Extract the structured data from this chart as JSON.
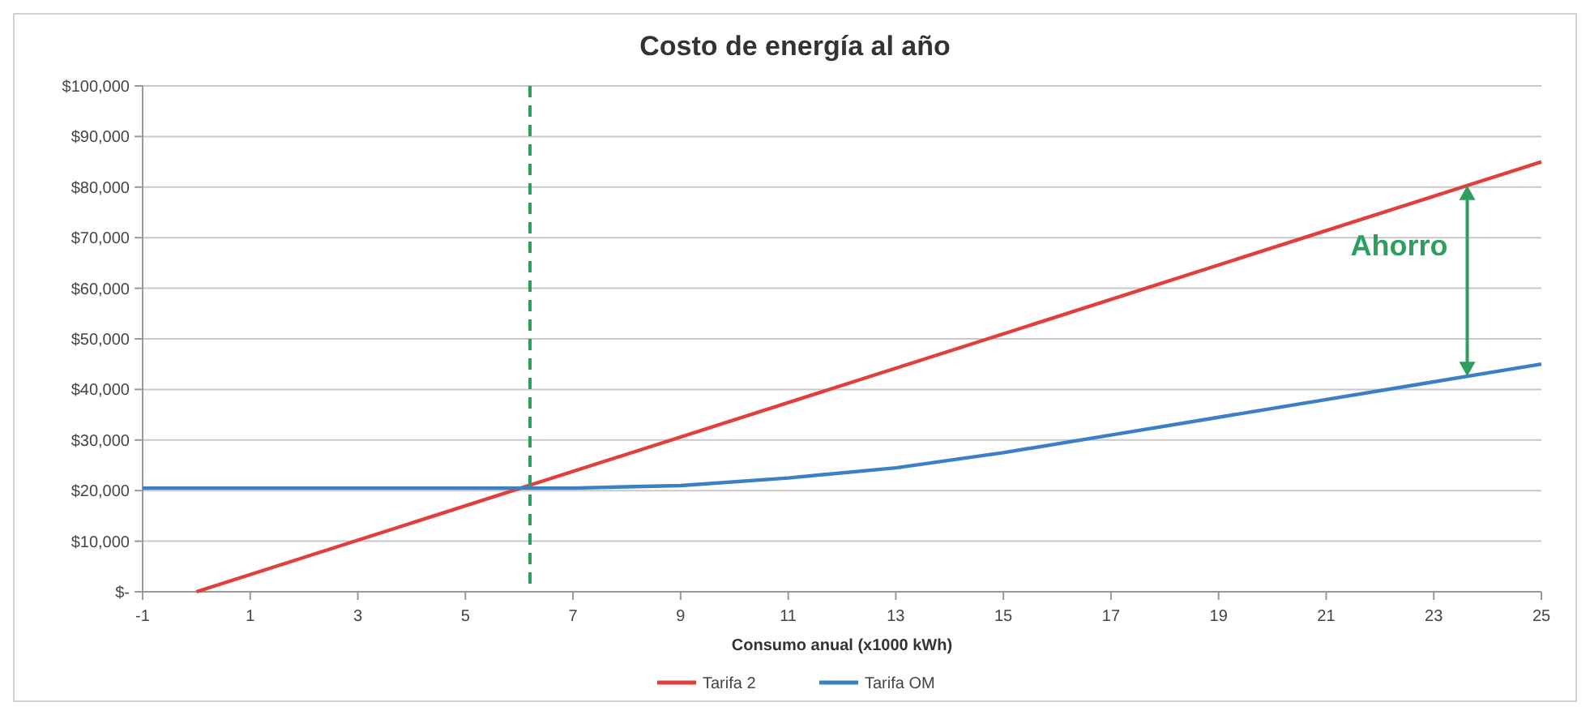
{
  "chart_data": {
    "type": "line",
    "title": "Costo de energía al año",
    "xlabel": "Consumo anual (x1000 kWh)",
    "series": [
      {
        "name": "Tarifa 2",
        "color": "#e0403c",
        "x": [
          0,
          25
        ],
        "values": [
          0,
          85000
        ]
      },
      {
        "name": "Tarifa OM",
        "color": "#3b7fc4",
        "x": [
          -1,
          0,
          7,
          9,
          11,
          13,
          15,
          17,
          19,
          21,
          23,
          25
        ],
        "values": [
          20500,
          20500,
          20500,
          21000,
          22500,
          24500,
          27500,
          31000,
          34500,
          38000,
          41500,
          45000
        ]
      }
    ],
    "xlim": [
      -1,
      25
    ],
    "xticks": [
      -1,
      1,
      3,
      5,
      7,
      9,
      11,
      13,
      15,
      17,
      19,
      21,
      23,
      25
    ],
    "ylim": [
      0,
      100000
    ],
    "yticks": [
      {
        "value": 0,
        "label": "$-"
      },
      {
        "value": 10000,
        "label": "$10,000"
      },
      {
        "value": 20000,
        "label": "$20,000"
      },
      {
        "value": 30000,
        "label": "$30,000"
      },
      {
        "value": 40000,
        "label": "$40,000"
      },
      {
        "value": 50000,
        "label": "$50,000"
      },
      {
        "value": 60000,
        "label": "$60,000"
      },
      {
        "value": 70000,
        "label": "$70,000"
      },
      {
        "value": 80000,
        "label": "$80,000"
      },
      {
        "value": 90000,
        "label": "$90,000"
      },
      {
        "value": 100000,
        "label": "$100,000"
      }
    ],
    "grid": "y",
    "legend": "bottom",
    "marker": "none",
    "line_style": "solid",
    "ref_lines": [
      {
        "axis": "x",
        "value": 6.2,
        "color": "#2e9e5e",
        "line_style": "dashed"
      }
    ],
    "annotations": [
      "Ahorro"
    ]
  }
}
